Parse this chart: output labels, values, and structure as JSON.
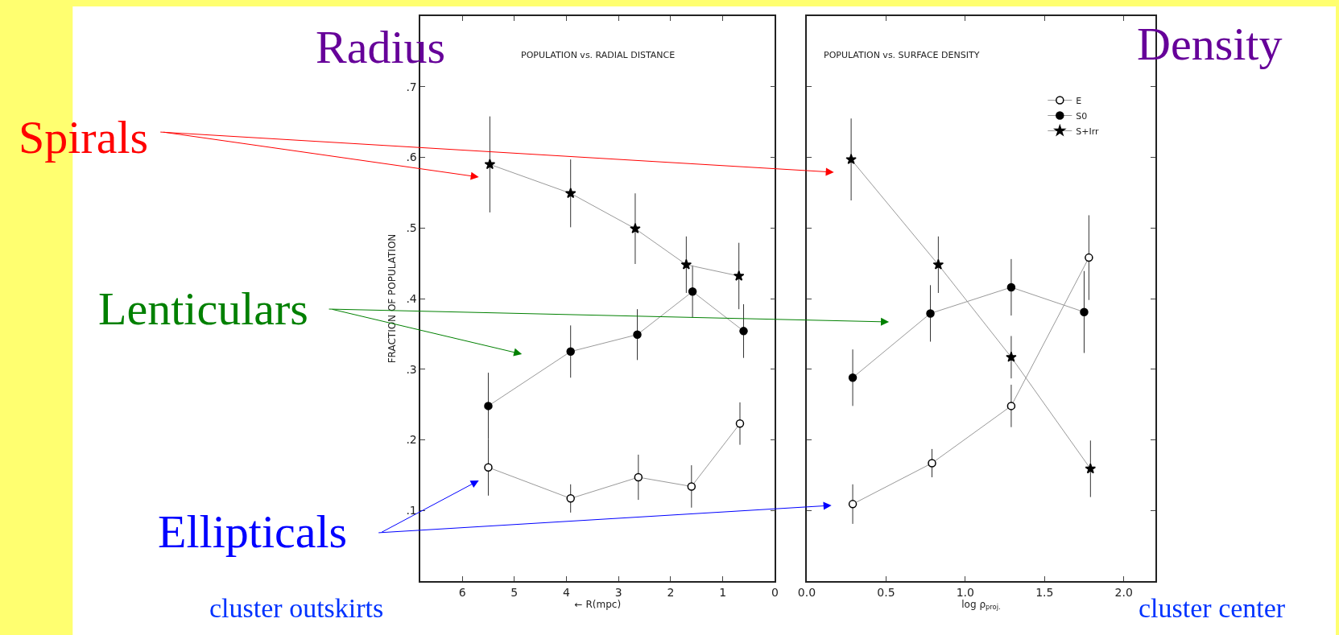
{
  "chart_data": [
    {
      "type": "line",
      "title": "POPULATION vs. RADIAL DISTANCE",
      "xlabel": "← R(mpc)",
      "ylabel": "FRACTION OF POPULATION",
      "xlim": [
        6.8,
        0
      ],
      "xticks": [
        6,
        5,
        4,
        3,
        2,
        1,
        0
      ],
      "ylim": [
        0,
        0.8
      ],
      "yticks": [
        {
          "value": 0.1,
          "label": ".1"
        },
        {
          "value": 0.2,
          "label": ".2"
        },
        {
          "value": 0.3,
          "label": ".3"
        },
        {
          "value": 0.4,
          "label": ".4"
        },
        {
          "value": 0.5,
          "label": ".5"
        },
        {
          "value": 0.6,
          "label": ".6"
        },
        {
          "value": 0.7,
          "label": ".7"
        }
      ],
      "series": [
        {
          "color": "#ffffff",
          "marker": "circle",
          "x": [
            5.5,
            3.92,
            2.62,
            1.6,
            0.67
          ],
          "values": [
            0.161,
            0.117,
            0.147,
            0.134,
            0.223
          ],
          "errors": [
            0.04,
            0.02,
            0.032,
            0.03,
            0.03
          ]
        },
        {
          "color": "#000000",
          "marker": "circle",
          "x": [
            5.5,
            3.92,
            2.64,
            1.58,
            0.6
          ],
          "values": [
            0.248,
            0.325,
            0.349,
            0.41,
            0.354
          ],
          "errors": [
            0.047,
            0.037,
            0.036,
            0.037,
            0.038
          ]
        },
        {
          "color": "#000000",
          "marker": "star",
          "x": [
            5.47,
            3.92,
            2.68,
            1.7,
            0.69
          ],
          "values": [
            0.59,
            0.549,
            0.499,
            0.448,
            0.432
          ],
          "errors": [
            0.068,
            0.048,
            0.05,
            0.04,
            0.047
          ]
        }
      ],
      "annotations": [
        "Radius",
        "Spirals",
        "Lenticulars",
        "Ellipticals",
        "cluster outskirts"
      ]
    },
    {
      "type": "line",
      "title": "POPULATION vs. SURFACE DENSITY",
      "xlabel": "log ρ$_{proj.}$",
      "xlim": [
        0,
        2.2
      ],
      "xticks": [
        {
          "value": 0,
          "label": "0.0"
        },
        0.5,
        {
          "value": 1,
          "label": "1.0"
        },
        1.5,
        {
          "value": 2,
          "label": "2.0"
        }
      ],
      "ylim": [
        0,
        0.8
      ],
      "yticks": [
        0.1,
        0.2,
        0.3,
        0.4,
        0.5,
        0.6,
        0.7
      ],
      "tick_labels": "x",
      "legend": "top right",
      "series": [
        {
          "name": "E",
          "color": "#ffffff",
          "marker": "circle",
          "x": [
            0.29,
            0.79,
            1.29,
            1.78
          ],
          "values": [
            0.109,
            0.167,
            0.248,
            0.458
          ],
          "errors": [
            0.028,
            0.02,
            0.03,
            0.06
          ]
        },
        {
          "name": "S0",
          "color": "#000000",
          "marker": "circle",
          "x": [
            0.29,
            0.78,
            1.29,
            1.75
          ],
          "values": [
            0.288,
            0.379,
            0.416,
            0.381
          ],
          "errors": [
            0.04,
            0.04,
            0.04,
            0.058
          ]
        },
        {
          "name": "S+Irr",
          "color": "#000000",
          "marker": "star",
          "x": [
            0.28,
            0.83,
            1.29,
            1.79
          ],
          "values": [
            0.597,
            0.448,
            0.317,
            0.159
          ],
          "errors": [
            0.058,
            0.04,
            0.03,
            0.04
          ]
        }
      ],
      "annotations": [
        "Density",
        "cluster center"
      ]
    }
  ]
}
